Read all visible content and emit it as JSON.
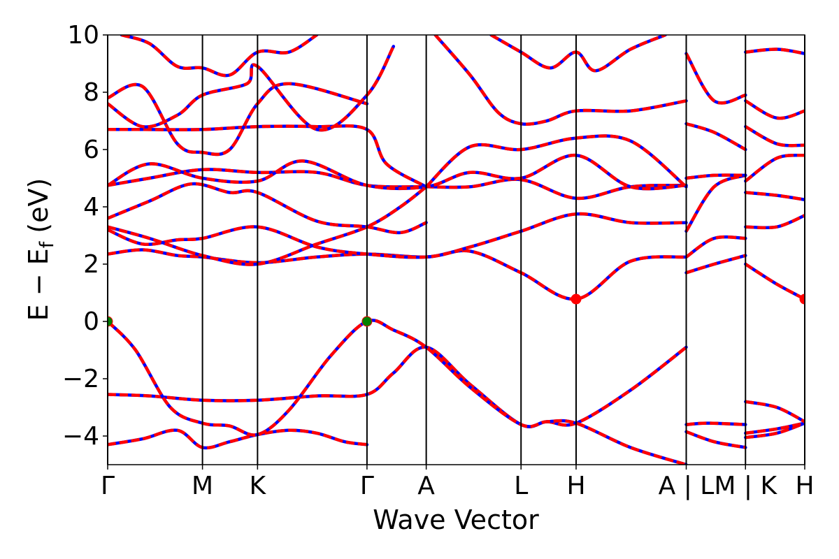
{
  "chart_data": {
    "type": "line",
    "title": "",
    "xlabel": "Wave Vector",
    "ylabel": "E − E",
    "ylabel_subscript": "f",
    "ylabel_unit": " (eV)",
    "ylim": [
      -5,
      10
    ],
    "yticks": [
      -4,
      -2,
      0,
      2,
      4,
      6,
      8,
      10
    ],
    "ytick_labels": [
      "−4",
      "−2",
      "0",
      "2",
      "4",
      "6",
      "8",
      "10"
    ],
    "xlim": [
      0,
      1
    ],
    "kpath_ticks": [
      {
        "x": 0.0,
        "label": "Γ"
      },
      {
        "x": 0.136,
        "label": "M"
      },
      {
        "x": 0.215,
        "label": "K"
      },
      {
        "x": 0.372,
        "label": "Γ"
      },
      {
        "x": 0.457,
        "label": "A"
      },
      {
        "x": 0.593,
        "label": "L"
      },
      {
        "x": 0.672,
        "label": "H"
      },
      {
        "x": 0.83,
        "label": "A | L"
      },
      {
        "x": 0.915,
        "label": "M | K"
      },
      {
        "x": 1.0,
        "label": "H"
      }
    ],
    "grid": false,
    "colors": {
      "band_main": "#ff0000",
      "band_dash": "#0000ff",
      "vbm_marker": "#008000",
      "cbm_marker": "#ff0000",
      "kline": "#000000"
    },
    "extrema": [
      {
        "name": "VBM",
        "x": 0.0,
        "y": 0.0
      },
      {
        "name": "VBM",
        "x": 0.372,
        "y": 0.0
      },
      {
        "name": "CBM",
        "x": 0.672,
        "y": 0.78
      },
      {
        "name": "CBM",
        "x": 1.0,
        "y": 0.78
      }
    ],
    "bands": [
      {
        "x": [
          0,
          0.05,
          0.1,
          0.136,
          0.175,
          0.215,
          0.26,
          0.3,
          0.34,
          0.372
        ],
        "y": [
          -4.3,
          -4.1,
          -3.8,
          -4.4,
          -4.2,
          -3.95,
          -3.8,
          -3.9,
          -4.2,
          -4.3
        ]
      },
      {
        "x": [
          0,
          0.06,
          0.136,
          0.215,
          0.3,
          0.372,
          0.41,
          0.457,
          0.52,
          0.593,
          0.63,
          0.672,
          0.75,
          0.83
        ],
        "y": [
          -2.55,
          -2.6,
          -2.75,
          -2.75,
          -2.6,
          -2.55,
          -1.8,
          -0.9,
          -2.2,
          -3.6,
          -3.5,
          -3.55,
          -2.4,
          -0.9
        ]
      },
      {
        "x": [
          0,
          0.04,
          0.09,
          0.136,
          0.175,
          0.215,
          0.26,
          0.32,
          0.372,
          0.41,
          0.457,
          0.52,
          0.593,
          0.63,
          0.672,
          0.75,
          0.83
        ],
        "y": [
          0.0,
          -1.0,
          -3.0,
          -3.55,
          -3.65,
          -3.95,
          -3.1,
          -1.2,
          0.0,
          -0.3,
          -0.9,
          -2.3,
          -3.6,
          -3.5,
          -3.55,
          -4.4,
          -5.0
        ]
      },
      {
        "x": [
          0.83,
          0.86,
          0.915
        ],
        "y": [
          -3.6,
          -3.55,
          -3.6
        ]
      },
      {
        "x": [
          0.83,
          0.87,
          0.915
        ],
        "y": [
          -3.85,
          -4.2,
          -4.4
        ]
      },
      {
        "x": [
          0.915,
          0.96,
          1.0
        ],
        "y": [
          -4.05,
          -3.9,
          -3.55
        ]
      },
      {
        "x": [
          0.915,
          0.96,
          1.0
        ],
        "y": [
          -3.9,
          -3.75,
          -3.55
        ]
      },
      {
        "x": [
          0.915,
          0.96,
          1.0
        ],
        "y": [
          -2.8,
          -3.0,
          -3.5
        ]
      },
      {
        "x": [
          0,
          0.05,
          0.1,
          0.136,
          0.215,
          0.3,
          0.372,
          0.457,
          0.52,
          0.593,
          0.672,
          0.75,
          0.83
        ],
        "y": [
          2.35,
          2.5,
          2.3,
          2.25,
          2.05,
          2.25,
          2.35,
          2.25,
          2.45,
          1.7,
          0.78,
          2.1,
          2.25
        ]
      },
      {
        "x": [
          0,
          0.05,
          0.1,
          0.136,
          0.215,
          0.3,
          0.372,
          0.457,
          0.52,
          0.593,
          0.672,
          0.75,
          0.83
        ],
        "y": [
          3.2,
          2.7,
          2.85,
          2.9,
          3.3,
          2.6,
          2.35,
          2.25,
          2.6,
          3.15,
          3.75,
          3.45,
          3.45
        ]
      },
      {
        "x": [
          0,
          0.06,
          0.136,
          0.215,
          0.3,
          0.372,
          0.42,
          0.457
        ],
        "y": [
          3.3,
          2.9,
          2.3,
          2.0,
          2.7,
          3.3,
          4.0,
          4.7
        ]
      },
      {
        "x": [
          0,
          0.06,
          0.12,
          0.175,
          0.215,
          0.3,
          0.372,
          0.42,
          0.457
        ],
        "y": [
          3.6,
          4.2,
          4.8,
          4.5,
          4.5,
          3.5,
          3.3,
          3.1,
          3.45
        ]
      },
      {
        "x": [
          0,
          0.06,
          0.136,
          0.215,
          0.3,
          0.372,
          0.457,
          0.52,
          0.593,
          0.672,
          0.75,
          0.83
        ],
        "y": [
          4.75,
          5.0,
          5.3,
          5.2,
          5.2,
          4.75,
          4.7,
          4.7,
          4.95,
          4.3,
          4.7,
          4.75
        ]
      },
      {
        "x": [
          0,
          0.06,
          0.136,
          0.215,
          0.28,
          0.372,
          0.457,
          0.52,
          0.593,
          0.672,
          0.75,
          0.83
        ],
        "y": [
          4.75,
          5.5,
          5.0,
          4.9,
          5.6,
          4.75,
          4.7,
          5.2,
          5.0,
          5.8,
          4.7,
          4.75
        ]
      },
      {
        "x": [
          0,
          0.05,
          0.136,
          0.215,
          0.3,
          0.372,
          0.4,
          0.457
        ],
        "y": [
          6.7,
          6.7,
          6.7,
          6.8,
          6.8,
          6.7,
          5.5,
          4.7
        ]
      },
      {
        "x": [
          0.457,
          0.52,
          0.593,
          0.672,
          0.75,
          0.83
        ],
        "y": [
          4.7,
          6.1,
          6.0,
          6.4,
          6.3,
          4.7
        ]
      },
      {
        "x": [
          0,
          0.05,
          0.1,
          0.136,
          0.175,
          0.215,
          0.26,
          0.372
        ],
        "y": [
          7.8,
          8.2,
          6.2,
          5.9,
          6.0,
          7.6,
          8.3,
          7.6
        ]
      },
      {
        "x": [
          0,
          0.05,
          0.1,
          0.136,
          0.2,
          0.215,
          0.3,
          0.372,
          0.41
        ],
        "y": [
          7.6,
          6.8,
          7.2,
          7.9,
          8.3,
          8.9,
          6.7,
          7.9,
          9.6
        ]
      },
      {
        "x": [
          0.02,
          0.06,
          0.1,
          0.136,
          0.175,
          0.215,
          0.26,
          0.3
        ],
        "y": [
          10.0,
          9.7,
          8.9,
          8.85,
          8.6,
          9.4,
          9.4,
          10.0
        ]
      },
      {
        "x": [
          0.47,
          0.52,
          0.56,
          0.593,
          0.63,
          0.672,
          0.75,
          0.83
        ],
        "y": [
          10.0,
          8.6,
          7.3,
          6.9,
          7.0,
          7.35,
          7.35,
          7.7
        ]
      },
      {
        "x": [
          0.55,
          0.593,
          0.635,
          0.672,
          0.7,
          0.75,
          0.8
        ],
        "y": [
          10.0,
          9.4,
          8.85,
          9.4,
          8.75,
          9.5,
          10.0
        ]
      },
      {
        "x": [
          0.83,
          0.87,
          0.915
        ],
        "y": [
          9.35,
          7.7,
          7.9
        ]
      },
      {
        "x": [
          0.83,
          0.87,
          0.915
        ],
        "y": [
          6.9,
          6.6,
          6.0
        ]
      },
      {
        "x": [
          0.83,
          0.87,
          0.915
        ],
        "y": [
          3.15,
          4.7,
          5.1
        ]
      },
      {
        "x": [
          0.83,
          0.87,
          0.915
        ],
        "y": [
          1.7,
          2.0,
          2.3
        ]
      },
      {
        "x": [
          0.83,
          0.87,
          0.915
        ],
        "y": [
          2.25,
          2.9,
          2.9
        ]
      },
      {
        "x": [
          0.83,
          0.87,
          0.915
        ],
        "y": [
          5.0,
          5.1,
          5.1
        ]
      },
      {
        "x": [
          0.915,
          0.96,
          1.0
        ],
        "y": [
          9.4,
          9.5,
          9.35
        ]
      },
      {
        "x": [
          0.915,
          0.96,
          1.0
        ],
        "y": [
          7.7,
          7.1,
          7.35
        ]
      },
      {
        "x": [
          0.915,
          0.96,
          1.0
        ],
        "y": [
          6.8,
          6.2,
          6.15
        ]
      },
      {
        "x": [
          0.915,
          0.96,
          1.0
        ],
        "y": [
          4.9,
          5.7,
          5.8
        ]
      },
      {
        "x": [
          0.915,
          0.96,
          1.0
        ],
        "y": [
          4.5,
          4.4,
          4.25
        ]
      },
      {
        "x": [
          0.915,
          0.96,
          1.0
        ],
        "y": [
          3.3,
          3.3,
          3.7
        ]
      },
      {
        "x": [
          0.915,
          0.96,
          1.0
        ],
        "y": [
          2.0,
          1.3,
          0.78
        ]
      }
    ]
  }
}
